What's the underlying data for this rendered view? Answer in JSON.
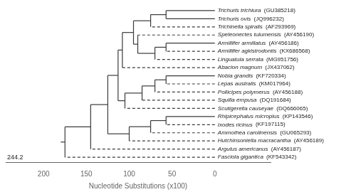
{
  "chart_data": {
    "type": "dendrogram",
    "xlabel": "Nucleotide Substitutions (x100)",
    "xlim": [
      244.2,
      -65
    ],
    "xticks": [
      200,
      150,
      100,
      50,
      0
    ],
    "grid": false,
    "color": "#3a3a3a",
    "tip_x": 0,
    "root_end": 180,
    "annotations": [
      {
        "text": "244.2",
        "x": 244.2
      }
    ],
    "tree": {
      "join": 175,
      "children": [
        {
          "join": 145,
          "children": [
            {
              "join": 125,
              "children": [
                {
                  "join": 113,
                  "children": [
                    {
                      "join": 108,
                      "children": [
                        {
                          "join": 95,
                          "children": [
                            {
                              "join": 75,
                              "children": [
                                {
                                  "join": 57,
                                  "children": [
                                    {
                                      "name": "Trichuris trichiura",
                                      "accession": "(GU385218)",
                                      "line_style": "solid"
                                    },
                                    {
                                      "name": "Trichuris ovis",
                                      "accession": "(JQ996232)",
                                      "line_style": "solid"
                                    }
                                  ]
                                },
                                {
                                  "name": "Trichinella spiralis",
                                  "accession": "(AF293969)",
                                  "line_style": "dashed"
                                }
                              ]
                            },
                            {
                              "join": 90,
                              "children": [
                                {
                                  "name": "Speleonectes tulumensis",
                                  "accession": "(AY456190)",
                                  "line_style": "dashed"
                                },
                                {
                                  "join": 70,
                                  "children": [
                                    {
                                      "join": 57,
                                      "children": [
                                        {
                                          "name": "Armillifer armillatus",
                                          "accession": "(AY456186)",
                                          "line_style": "solid"
                                        },
                                        {
                                          "name": "Armillifer agkistrodontis",
                                          "accession": "(KX686568)",
                                          "line_style": "dashed"
                                        }
                                      ]
                                    },
                                    {
                                      "name": "Linguatula serrata",
                                      "accession": "(MG951756)",
                                      "line_style": "dashed"
                                    }
                                  ]
                                }
                              ]
                            }
                          ]
                        },
                        {
                          "name": "Abacion magnum",
                          "accession": "(JX437062)",
                          "line_style": "dashed"
                        }
                      ]
                    },
                    {
                      "join": 105,
                      "children": [
                        {
                          "join": 85,
                          "children": [
                            {
                              "join": 70,
                              "children": [
                                {
                                  "join": 57,
                                  "children": [
                                    {
                                      "name": "Nobia grandis",
                                      "accession": "(KF720334)",
                                      "line_style": "solid"
                                    },
                                    {
                                      "name": "Lepas australis",
                                      "accession": "(KM017964)",
                                      "line_style": "dashed"
                                    }
                                  ]
                                },
                                {
                                  "name": "Pollicipes polymerus",
                                  "accession": "(AY456188)",
                                  "line_style": "dashed"
                                }
                              ]
                            },
                            {
                              "name": "Squilla empusa",
                              "accession": "(DQ191684)",
                              "line_style": "dashed"
                            }
                          ]
                        },
                        {
                          "name": "Scutigerella causeyae",
                          "accession": "(DQ666065)",
                          "line_style": "dashed"
                        }
                      ]
                    }
                  ]
                },
                {
                  "join": 100,
                  "children": [
                    {
                      "join": 75,
                      "children": [
                        {
                          "join": 57,
                          "children": [
                            {
                              "name": "Rhipicephalus microplus",
                              "accession": "(KP143546)",
                              "line_style": "solid"
                            },
                            {
                              "name": "Ixodes ricinus",
                              "accession": "(KF197115)",
                              "line_style": "dashed"
                            }
                          ]
                        },
                        {
                          "name": "Ammothea carolinensis",
                          "accession": "(GU065293)",
                          "line_style": "dashed"
                        }
                      ]
                    },
                    {
                      "name": "Hutchinsoniella macracantha",
                      "accession": "(AY456189)",
                      "line_style": "dashed"
                    }
                  ]
                }
              ]
            },
            {
              "name": "Argulus americanus",
              "accession": "(AY456187)",
              "line_style": "dashed"
            }
          ]
        },
        {
          "name": "Fasciola gigantica",
          "accession": "(KF543342)",
          "line_style": "dashed"
        }
      ]
    }
  }
}
